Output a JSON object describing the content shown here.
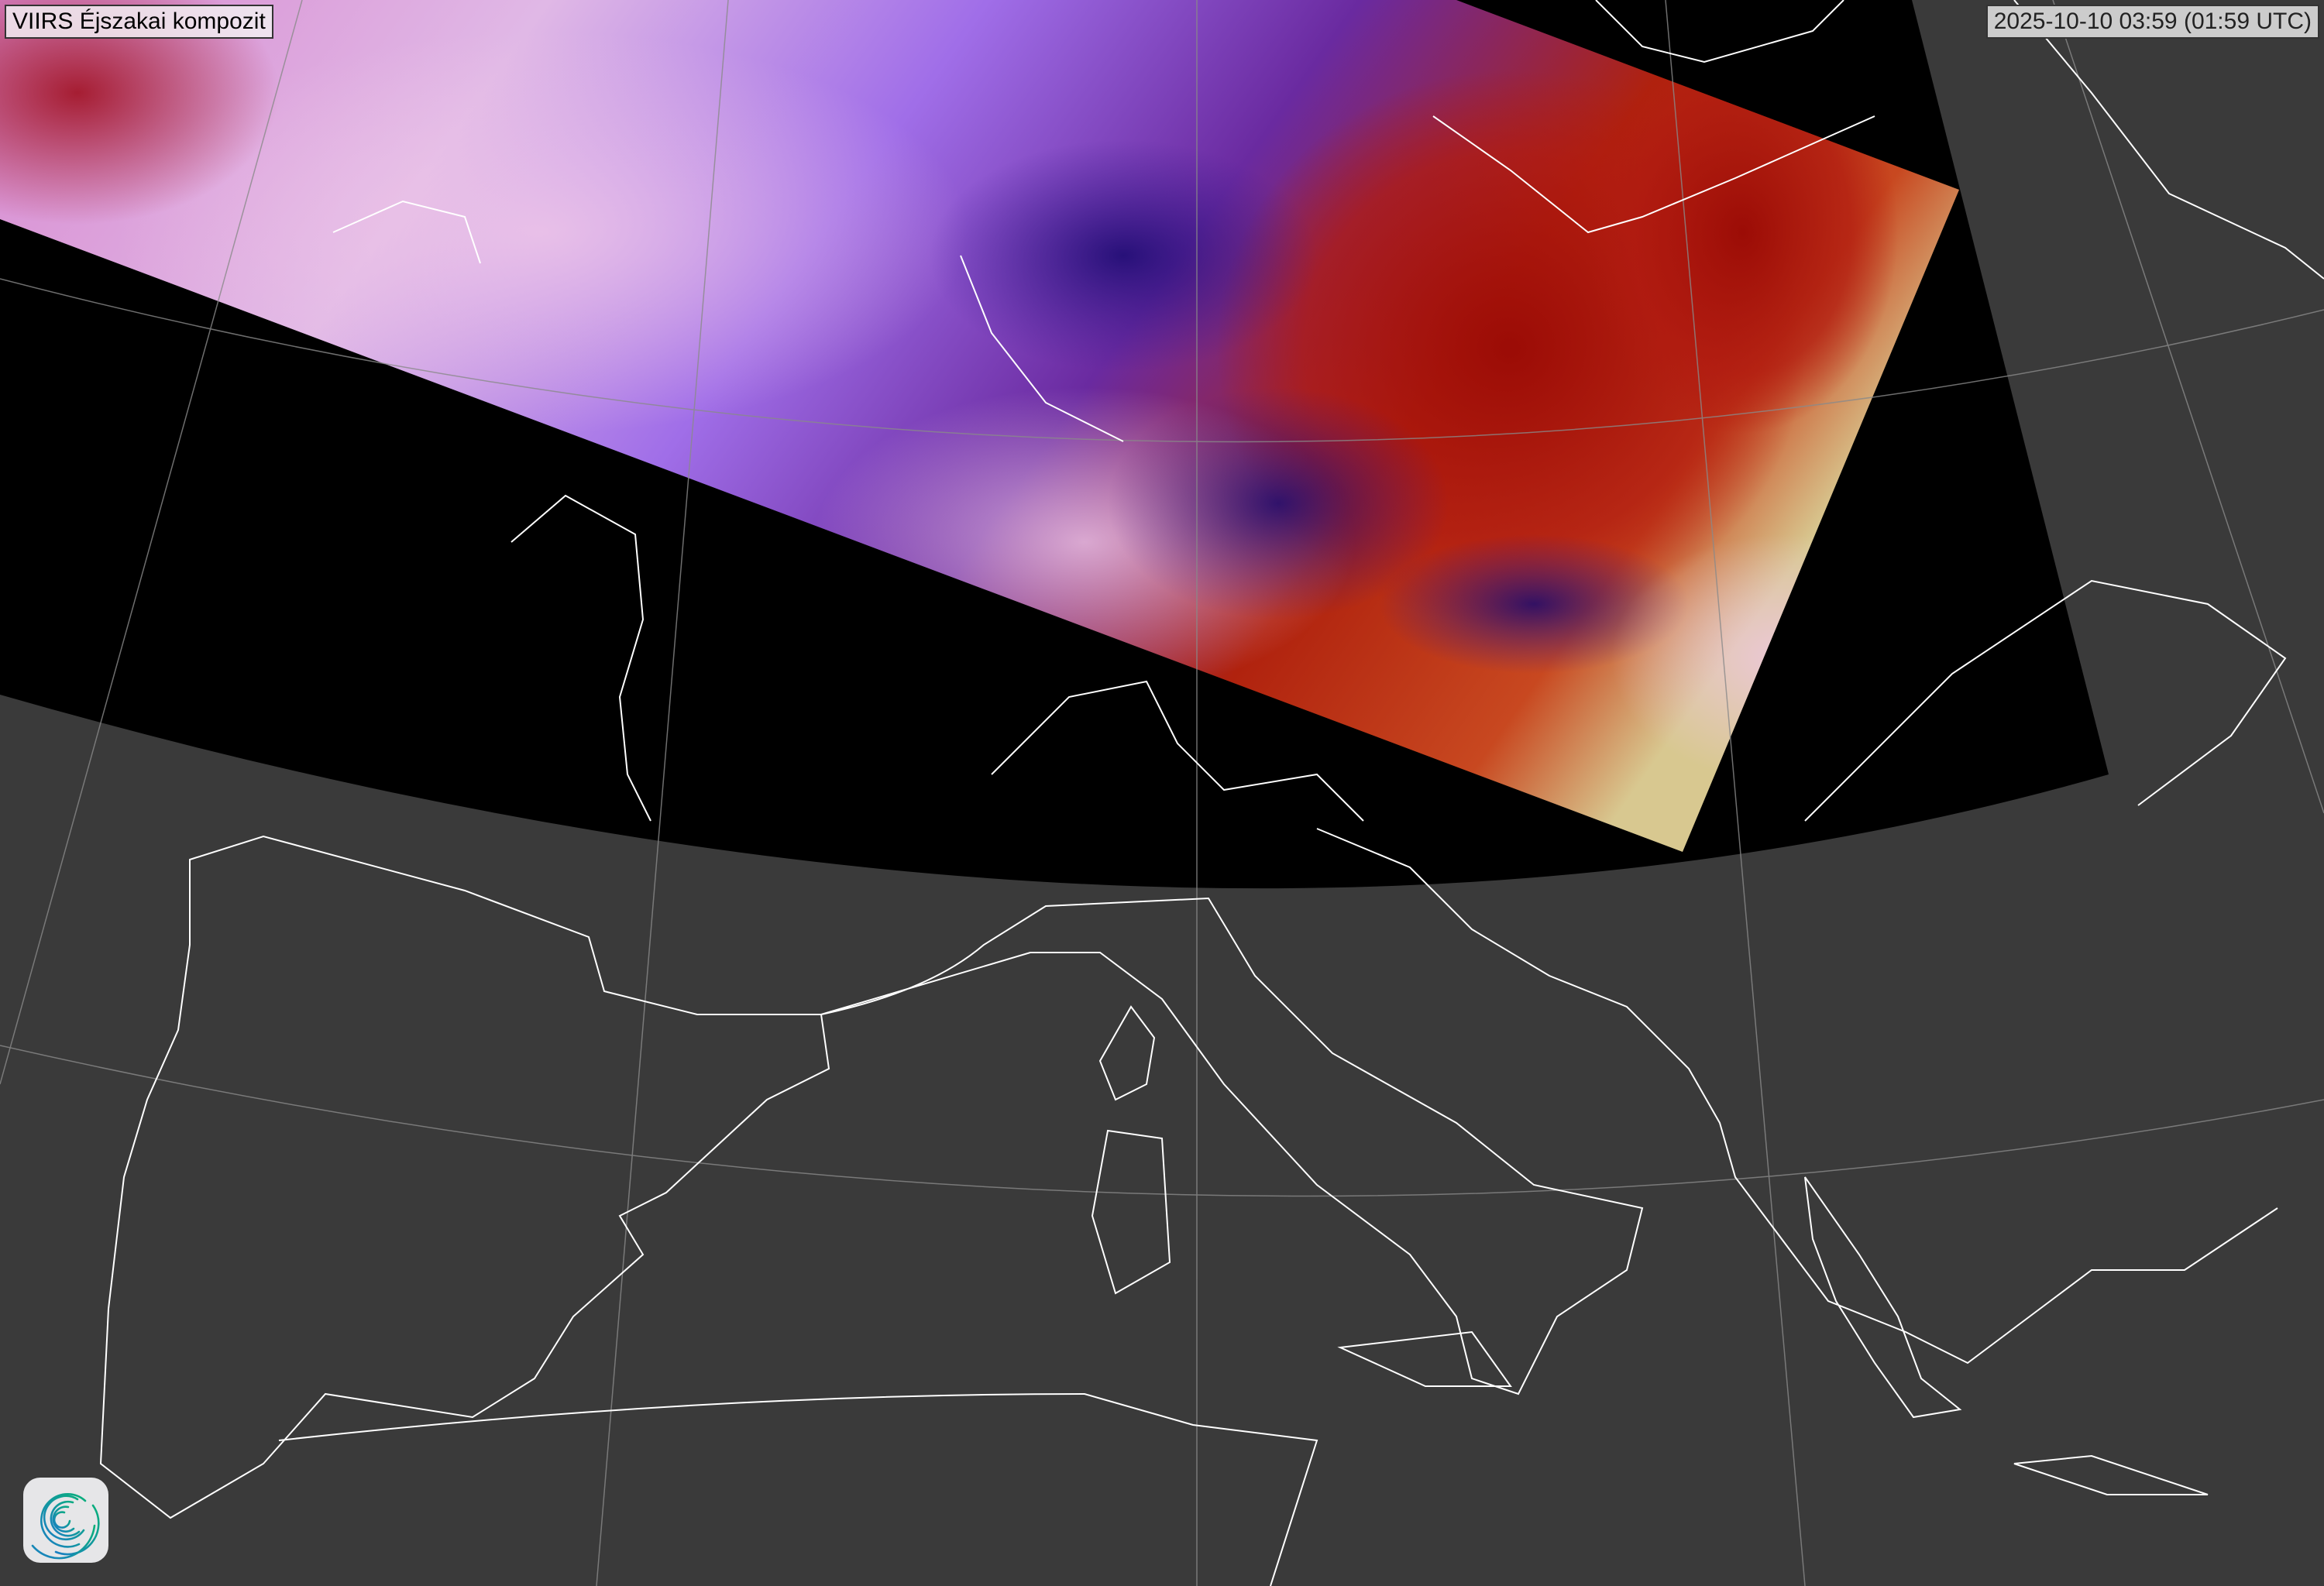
{
  "title": "VIIRS Éjszakai kompozit",
  "timestamp": "2025-10-10 03:59 (01:59 UTC)",
  "logo": {
    "name": "spiral-logo",
    "colors": [
      "#1a7fc4",
      "#0ab07a"
    ]
  },
  "colors": {
    "background": "#3a3a3a",
    "no_data": "#000000",
    "coastline": "#ffffff",
    "graticule": "#8a8a8a"
  }
}
